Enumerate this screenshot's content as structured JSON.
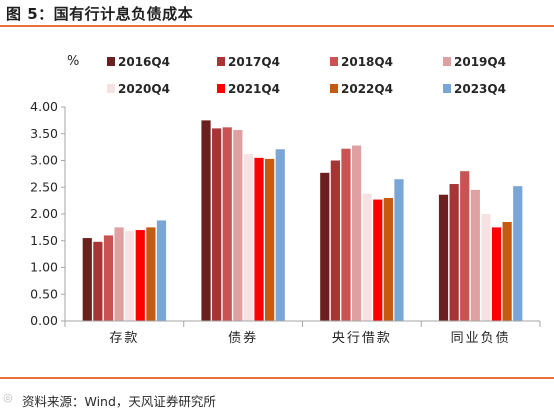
{
  "figure": {
    "title": "图 5：国有行计息负债成本",
    "source": "资料来源：Wind，天风证券研究所"
  },
  "colors": {
    "accent_rule": "#e8703a",
    "axis": "#a6a6a6"
  },
  "chart_data": {
    "type": "bar",
    "title": "",
    "xlabel": "",
    "ylabel": "%",
    "ylim": [
      0,
      4.0
    ],
    "yticks": [
      "0.00",
      "0.50",
      "1.00",
      "1.50",
      "2.00",
      "2.50",
      "3.00",
      "3.50",
      "4.00"
    ],
    "grid": false,
    "legend_position": "top",
    "categories": [
      "存款",
      "债券",
      "央行借款",
      "同业负债"
    ],
    "series": [
      {
        "name": "2016Q4",
        "color": "#6b1f1f",
        "values": [
          1.55,
          3.75,
          2.77,
          2.36
        ]
      },
      {
        "name": "2017Q4",
        "color": "#a63535",
        "values": [
          1.48,
          3.6,
          3.0,
          2.56
        ]
      },
      {
        "name": "2018Q4",
        "color": "#c95252",
        "values": [
          1.6,
          3.62,
          3.22,
          2.8
        ]
      },
      {
        "name": "2019Q4",
        "color": "#dea0a0",
        "values": [
          1.75,
          3.57,
          3.28,
          2.45
        ]
      },
      {
        "name": "2020Q4",
        "color": "#f6e2e2",
        "values": [
          1.68,
          3.12,
          2.38,
          2.0
        ]
      },
      {
        "name": "2021Q4",
        "color": "#ff0000",
        "values": [
          1.7,
          3.05,
          2.27,
          1.75
        ]
      },
      {
        "name": "2022Q4",
        "color": "#c55a11",
        "values": [
          1.75,
          3.03,
          2.3,
          1.85
        ]
      },
      {
        "name": "2023Q4",
        "color": "#7aa6d6",
        "values": [
          1.88,
          3.21,
          2.65,
          2.52
        ]
      }
    ]
  }
}
